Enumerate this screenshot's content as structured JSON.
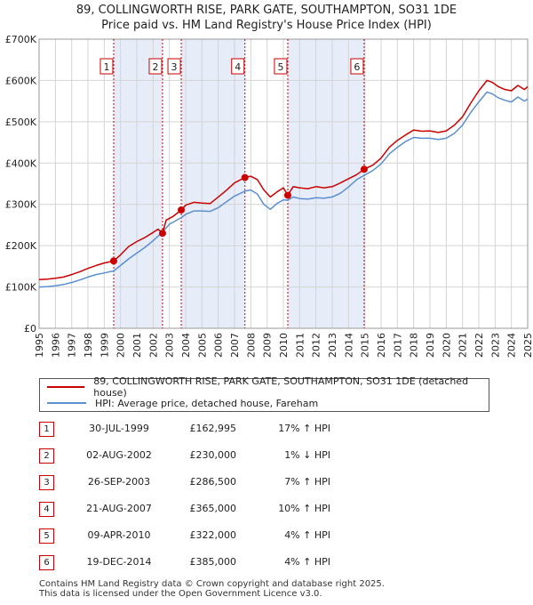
{
  "title_line1": "89, COLLINGWORTH RISE, PARK GATE, SOUTHAMPTON, SO31 1DE",
  "title_line2": "Price paid vs. HM Land Registry's House Price Index (HPI)",
  "legend": [
    {
      "label": "89, COLLINGWORTH RISE, PARK GATE, SOUTHAMPTON, SO31 1DE (detached house)",
      "color": "#cc0000"
    },
    {
      "label": "HPI: Average price, detached house, Fareham",
      "color": "#5b8fd0"
    }
  ],
  "transactions": [
    {
      "num": "1",
      "date": "30-JUL-1999",
      "price": "£162,995",
      "hpi": "17% ↑ HPI"
    },
    {
      "num": "2",
      "date": "02-AUG-2002",
      "price": "£230,000",
      "hpi": "1% ↓ HPI"
    },
    {
      "num": "3",
      "date": "26-SEP-2003",
      "price": "£286,500",
      "hpi": "7% ↑ HPI"
    },
    {
      "num": "4",
      "date": "21-AUG-2007",
      "price": "£365,000",
      "hpi": "10% ↑ HPI"
    },
    {
      "num": "5",
      "date": "09-APR-2010",
      "price": "£322,000",
      "hpi": "4% ↑ HPI"
    },
    {
      "num": "6",
      "date": "19-DEC-2014",
      "price": "£385,000",
      "hpi": "4% ↑ HPI"
    }
  ],
  "footer_line1": "Contains HM Land Registry data © Crown copyright and database right 2025.",
  "footer_line2": "This data is licensed under the Open Government Licence v3.0.",
  "chart_data": {
    "type": "line",
    "title": "",
    "xlabel": "",
    "ylabel": "",
    "xlim": [
      1995,
      2025
    ],
    "ylim": [
      0,
      700000
    ],
    "x_ticks": [
      "1995",
      "1996",
      "1997",
      "1998",
      "1999",
      "2000",
      "2001",
      "2002",
      "2003",
      "2004",
      "2005",
      "2006",
      "2007",
      "2008",
      "2009",
      "2010",
      "2011",
      "2012",
      "2013",
      "2014",
      "2015",
      "2016",
      "2017",
      "2018",
      "2019",
      "2020",
      "2021",
      "2022",
      "2023",
      "2024",
      "2025"
    ],
    "y_ticks": [
      {
        "value": 0,
        "label": "£0"
      },
      {
        "value": 100000,
        "label": "£100K"
      },
      {
        "value": 200000,
        "label": "£200K"
      },
      {
        "value": 300000,
        "label": "£300K"
      },
      {
        "value": 400000,
        "label": "£400K"
      },
      {
        "value": 500000,
        "label": "£500K"
      },
      {
        "value": 600000,
        "label": "£600K"
      },
      {
        "value": 700000,
        "label": "£700K"
      }
    ],
    "grid": true,
    "shaded_periods": [
      [
        1999.58,
        2002.58
      ],
      [
        2003.73,
        2007.64
      ],
      [
        2010.27,
        2014.96
      ]
    ],
    "series": [
      {
        "name": "89, COLLINGWORTH RISE, PARK GATE, SOUTHAMPTON, SO31 1DE (detached house)",
        "color": "#cc0000",
        "points": [
          [
            1995.0,
            118000
          ],
          [
            1995.5,
            119000
          ],
          [
            1996.0,
            121000
          ],
          [
            1996.5,
            124000
          ],
          [
            1997.0,
            130000
          ],
          [
            1997.5,
            137000
          ],
          [
            1998.0,
            145000
          ],
          [
            1998.5,
            152000
          ],
          [
            1999.0,
            158000
          ],
          [
            1999.58,
            162995
          ],
          [
            2000.0,
            178000
          ],
          [
            2000.5,
            198000
          ],
          [
            2001.0,
            210000
          ],
          [
            2001.5,
            220000
          ],
          [
            2002.0,
            232000
          ],
          [
            2002.3,
            240000
          ],
          [
            2002.58,
            230000
          ],
          [
            2002.8,
            262000
          ],
          [
            2003.2,
            270000
          ],
          [
            2003.73,
            286500
          ],
          [
            2004.0,
            298000
          ],
          [
            2004.5,
            305000
          ],
          [
            2005.0,
            303000
          ],
          [
            2005.5,
            302000
          ],
          [
            2006.0,
            318000
          ],
          [
            2006.5,
            334000
          ],
          [
            2007.0,
            352000
          ],
          [
            2007.64,
            365000
          ],
          [
            2008.0,
            368000
          ],
          [
            2008.4,
            360000
          ],
          [
            2008.8,
            335000
          ],
          [
            2009.2,
            318000
          ],
          [
            2009.6,
            330000
          ],
          [
            2010.0,
            340000
          ],
          [
            2010.27,
            322000
          ],
          [
            2010.6,
            343000
          ],
          [
            2011.0,
            340000
          ],
          [
            2011.5,
            338000
          ],
          [
            2012.0,
            343000
          ],
          [
            2012.5,
            340000
          ],
          [
            2013.0,
            343000
          ],
          [
            2013.5,
            352000
          ],
          [
            2014.0,
            362000
          ],
          [
            2014.5,
            372000
          ],
          [
            2014.96,
            385000
          ],
          [
            2015.5,
            395000
          ],
          [
            2016.0,
            412000
          ],
          [
            2016.5,
            438000
          ],
          [
            2017.0,
            455000
          ],
          [
            2017.5,
            468000
          ],
          [
            2018.0,
            480000
          ],
          [
            2018.5,
            477000
          ],
          [
            2019.0,
            478000
          ],
          [
            2019.5,
            474000
          ],
          [
            2020.0,
            478000
          ],
          [
            2020.5,
            492000
          ],
          [
            2021.0,
            512000
          ],
          [
            2021.5,
            545000
          ],
          [
            2022.0,
            575000
          ],
          [
            2022.5,
            600000
          ],
          [
            2022.8,
            596000
          ],
          [
            2023.2,
            585000
          ],
          [
            2023.6,
            578000
          ],
          [
            2024.0,
            575000
          ],
          [
            2024.4,
            588000
          ],
          [
            2024.8,
            578000
          ],
          [
            2025.0,
            585000
          ]
        ]
      },
      {
        "name": "HPI: Average price, detached house, Fareham",
        "color": "#5b8fd0",
        "points": [
          [
            1995.0,
            100000
          ],
          [
            1995.5,
            101000
          ],
          [
            1996.0,
            103000
          ],
          [
            1996.5,
            106000
          ],
          [
            1997.0,
            111000
          ],
          [
            1997.5,
            117000
          ],
          [
            1998.0,
            124000
          ],
          [
            1998.5,
            130000
          ],
          [
            1999.0,
            134000
          ],
          [
            1999.58,
            139000
          ],
          [
            2000.0,
            152000
          ],
          [
            2000.5,
            168000
          ],
          [
            2001.0,
            182000
          ],
          [
            2001.5,
            196000
          ],
          [
            2002.0,
            212000
          ],
          [
            2002.58,
            233000
          ],
          [
            2003.0,
            252000
          ],
          [
            2003.73,
            268000
          ],
          [
            2004.0,
            276000
          ],
          [
            2004.5,
            284000
          ],
          [
            2005.0,
            284000
          ],
          [
            2005.5,
            283000
          ],
          [
            2006.0,
            292000
          ],
          [
            2006.5,
            306000
          ],
          [
            2007.0,
            320000
          ],
          [
            2007.64,
            332000
          ],
          [
            2008.0,
            335000
          ],
          [
            2008.4,
            325000
          ],
          [
            2008.8,
            300000
          ],
          [
            2009.2,
            288000
          ],
          [
            2009.6,
            302000
          ],
          [
            2010.0,
            311000
          ],
          [
            2010.27,
            310000
          ],
          [
            2010.6,
            318000
          ],
          [
            2011.0,
            314000
          ],
          [
            2011.5,
            313000
          ],
          [
            2012.0,
            316000
          ],
          [
            2012.5,
            315000
          ],
          [
            2013.0,
            318000
          ],
          [
            2013.5,
            327000
          ],
          [
            2014.0,
            342000
          ],
          [
            2014.5,
            360000
          ],
          [
            2014.96,
            370000
          ],
          [
            2015.5,
            382000
          ],
          [
            2016.0,
            398000
          ],
          [
            2016.5,
            422000
          ],
          [
            2017.0,
            438000
          ],
          [
            2017.5,
            452000
          ],
          [
            2018.0,
            462000
          ],
          [
            2018.5,
            460000
          ],
          [
            2019.0,
            460000
          ],
          [
            2019.5,
            457000
          ],
          [
            2020.0,
            460000
          ],
          [
            2020.5,
            472000
          ],
          [
            2021.0,
            492000
          ],
          [
            2021.5,
            522000
          ],
          [
            2022.0,
            548000
          ],
          [
            2022.5,
            572000
          ],
          [
            2022.8,
            568000
          ],
          [
            2023.2,
            558000
          ],
          [
            2023.6,
            552000
          ],
          [
            2024.0,
            548000
          ],
          [
            2024.4,
            560000
          ],
          [
            2024.8,
            550000
          ],
          [
            2025.0,
            555000
          ]
        ]
      }
    ],
    "sales": [
      {
        "label": "1",
        "x": 1999.58,
        "y": 162995
      },
      {
        "label": "2",
        "x": 2002.58,
        "y": 230000
      },
      {
        "label": "3",
        "x": 2003.73,
        "y": 286500
      },
      {
        "label": "4",
        "x": 2007.64,
        "y": 365000
      },
      {
        "label": "5",
        "x": 2010.27,
        "y": 322000
      },
      {
        "label": "6",
        "x": 2014.96,
        "y": 385000
      }
    ]
  }
}
